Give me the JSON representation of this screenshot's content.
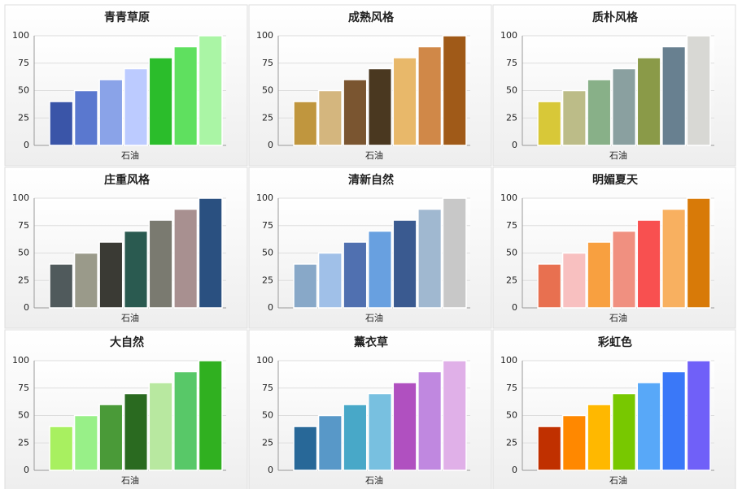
{
  "chart_data": [
    {
      "type": "bar",
      "title": "青青草原",
      "categories": [
        "石油"
      ],
      "ylim": [
        0,
        100
      ],
      "yticks": [
        0,
        25,
        50,
        75,
        100
      ],
      "grid": true,
      "series": [
        {
          "color": "#3a55a8",
          "values": [
            40
          ]
        },
        {
          "color": "#5a78cf",
          "values": [
            50
          ]
        },
        {
          "color": "#8aa3e8",
          "values": [
            60
          ]
        },
        {
          "color": "#bccbff",
          "values": [
            70
          ]
        },
        {
          "color": "#2bbd2b",
          "values": [
            80
          ]
        },
        {
          "color": "#5fe05f",
          "values": [
            90
          ]
        },
        {
          "color": "#aaf5a5",
          "values": [
            100
          ]
        }
      ]
    },
    {
      "type": "bar",
      "title": "成熟风格",
      "categories": [
        "石油"
      ],
      "ylim": [
        0,
        100
      ],
      "yticks": [
        0,
        25,
        50,
        75,
        100
      ],
      "grid": true,
      "series": [
        {
          "color": "#c0963e",
          "values": [
            40
          ]
        },
        {
          "color": "#d4b67e",
          "values": [
            50
          ]
        },
        {
          "color": "#7a5530",
          "values": [
            60
          ]
        },
        {
          "color": "#4a3820",
          "values": [
            70
          ]
        },
        {
          "color": "#e8b86a",
          "values": [
            80
          ]
        },
        {
          "color": "#d08848",
          "values": [
            90
          ]
        },
        {
          "color": "#a05a18",
          "values": [
            100
          ]
        }
      ]
    },
    {
      "type": "bar",
      "title": "质朴风格",
      "categories": [
        "石油"
      ],
      "ylim": [
        0,
        100
      ],
      "yticks": [
        0,
        25,
        50,
        75,
        100
      ],
      "grid": true,
      "series": [
        {
          "color": "#d8c838",
          "values": [
            40
          ]
        },
        {
          "color": "#bcbc88",
          "values": [
            50
          ]
        },
        {
          "color": "#88b088",
          "values": [
            60
          ]
        },
        {
          "color": "#8aa0a0",
          "values": [
            70
          ]
        },
        {
          "color": "#8a9a48",
          "values": [
            80
          ]
        },
        {
          "color": "#688090",
          "values": [
            90
          ]
        },
        {
          "color": "#d8d8d4",
          "values": [
            100
          ]
        }
      ]
    },
    {
      "type": "bar",
      "title": "庄重风格",
      "categories": [
        "石油"
      ],
      "ylim": [
        0,
        100
      ],
      "yticks": [
        0,
        25,
        50,
        75,
        100
      ],
      "grid": true,
      "series": [
        {
          "color": "#505a5c",
          "values": [
            40
          ]
        },
        {
          "color": "#9a9a8a",
          "values": [
            50
          ]
        },
        {
          "color": "#3a3a34",
          "values": [
            60
          ]
        },
        {
          "color": "#2a5a50",
          "values": [
            70
          ]
        },
        {
          "color": "#7a7a70",
          "values": [
            80
          ]
        },
        {
          "color": "#a89090",
          "values": [
            90
          ]
        },
        {
          "color": "#2a5080",
          "values": [
            100
          ]
        }
      ]
    },
    {
      "type": "bar",
      "title": "清新自然",
      "categories": [
        "石油"
      ],
      "ylim": [
        0,
        100
      ],
      "yticks": [
        0,
        25,
        50,
        75,
        100
      ],
      "grid": true,
      "series": [
        {
          "color": "#88a8c8",
          "values": [
            40
          ]
        },
        {
          "color": "#a0c0e8",
          "values": [
            50
          ]
        },
        {
          "color": "#5070b0",
          "values": [
            60
          ]
        },
        {
          "color": "#68a0e0",
          "values": [
            70
          ]
        },
        {
          "color": "#3a5a90",
          "values": [
            80
          ]
        },
        {
          "color": "#a0b8d0",
          "values": [
            90
          ]
        },
        {
          "color": "#c8c8c8",
          "values": [
            100
          ]
        }
      ]
    },
    {
      "type": "bar",
      "title": "明媚夏天",
      "categories": [
        "石油"
      ],
      "ylim": [
        0,
        100
      ],
      "yticks": [
        0,
        25,
        50,
        75,
        100
      ],
      "grid": true,
      "series": [
        {
          "color": "#e87050",
          "values": [
            40
          ]
        },
        {
          "color": "#f8c0c0",
          "values": [
            50
          ]
        },
        {
          "color": "#f8a040",
          "values": [
            60
          ]
        },
        {
          "color": "#f09080",
          "values": [
            70
          ]
        },
        {
          "color": "#f85050",
          "values": [
            80
          ]
        },
        {
          "color": "#f8b060",
          "values": [
            90
          ]
        },
        {
          "color": "#d87a08",
          "values": [
            100
          ]
        }
      ]
    },
    {
      "type": "bar",
      "title": "大自然",
      "categories": [
        "石油"
      ],
      "ylim": [
        0,
        100
      ],
      "yticks": [
        0,
        25,
        50,
        75,
        100
      ],
      "grid": true,
      "series": [
        {
          "color": "#a8f060",
          "values": [
            40
          ]
        },
        {
          "color": "#98f088",
          "values": [
            50
          ]
        },
        {
          "color": "#4a9a38",
          "values": [
            60
          ]
        },
        {
          "color": "#2a6a20",
          "values": [
            70
          ]
        },
        {
          "color": "#b8e8a0",
          "values": [
            80
          ]
        },
        {
          "color": "#58c868",
          "values": [
            90
          ]
        },
        {
          "color": "#30b020",
          "values": [
            100
          ]
        }
      ]
    },
    {
      "type": "bar",
      "title": "薰衣草",
      "categories": [
        "石油"
      ],
      "ylim": [
        0,
        100
      ],
      "yticks": [
        0,
        25,
        50,
        75,
        100
      ],
      "grid": true,
      "series": [
        {
          "color": "#286898",
          "values": [
            40
          ]
        },
        {
          "color": "#5898c8",
          "values": [
            50
          ]
        },
        {
          "color": "#48a8c8",
          "values": [
            60
          ]
        },
        {
          "color": "#78c0e0",
          "values": [
            70
          ]
        },
        {
          "color": "#b050c0",
          "values": [
            80
          ]
        },
        {
          "color": "#c088e0",
          "values": [
            90
          ]
        },
        {
          "color": "#e0b0e8",
          "values": [
            100
          ]
        }
      ]
    },
    {
      "type": "bar",
      "title": "彩虹色",
      "categories": [
        "石油"
      ],
      "ylim": [
        0,
        100
      ],
      "yticks": [
        0,
        25,
        50,
        75,
        100
      ],
      "grid": true,
      "series": [
        {
          "color": "#c03000",
          "values": [
            40
          ]
        },
        {
          "color": "#ff8800",
          "values": [
            50
          ]
        },
        {
          "color": "#ffb800",
          "values": [
            60
          ]
        },
        {
          "color": "#78c800",
          "values": [
            70
          ]
        },
        {
          "color": "#58a8f8",
          "values": [
            80
          ]
        },
        {
          "color": "#3a78f8",
          "values": [
            90
          ]
        },
        {
          "color": "#7060f8",
          "values": [
            100
          ]
        }
      ]
    }
  ]
}
